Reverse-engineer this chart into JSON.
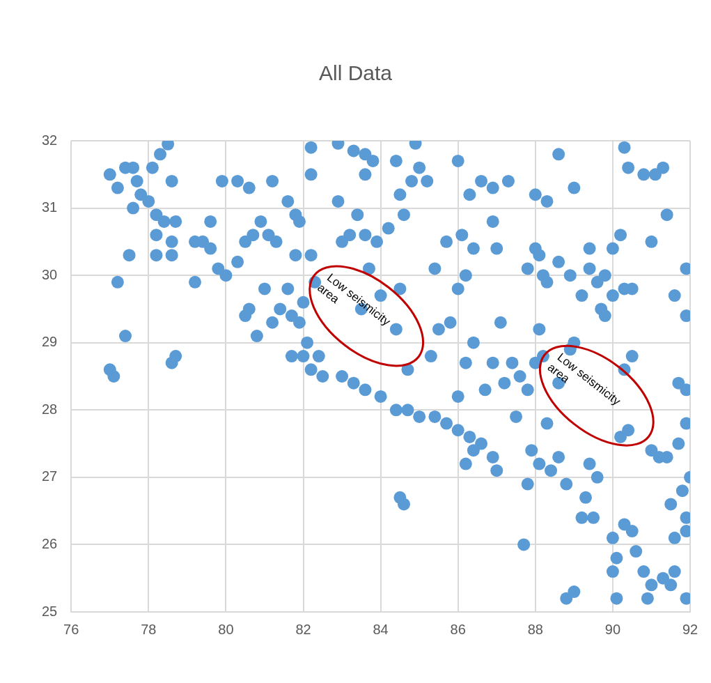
{
  "chart_data": {
    "type": "scatter",
    "title": "All Data",
    "xlim": [
      76,
      92
    ],
    "xticks": [
      76,
      78,
      80,
      82,
      84,
      86,
      88,
      90,
      92
    ],
    "ylim": [
      25,
      32
    ],
    "yticks": [
      25,
      26,
      27,
      28,
      29,
      30,
      31,
      32
    ],
    "grid": true,
    "legend": false,
    "marker": "circle",
    "annotations": [
      "Low seismicity area",
      "Low seismicity area"
    ],
    "series": [
      {
        "color": "#5b9bd5",
        "x": [
          77.0,
          77.2,
          77.4,
          77.6,
          77.7,
          77.8,
          77.6,
          78.0,
          78.2,
          78.4,
          78.2,
          78.6,
          78.7,
          78.1,
          78.3,
          78.5,
          78.6,
          77.5,
          77.2,
          77.4,
          77.0,
          77.1,
          78.6,
          78.7,
          78.6,
          78.2,
          79.2,
          79.2,
          79.4,
          79.6,
          79.6,
          79.8,
          80.0,
          80.3,
          79.9,
          80.3,
          80.6,
          80.7,
          80.5,
          80.9,
          81.1,
          81.3,
          81.0,
          80.6,
          80.5,
          80.8,
          81.2,
          81.4,
          81.7,
          81.9,
          81.6,
          81.8,
          81.9,
          81.2,
          81.6,
          81.8,
          82.1,
          82.0,
          82.2,
          82.4,
          82.5,
          82.3,
          82.2,
          82.0,
          81.7,
          82.2,
          82.2,
          82.9,
          83.3,
          83.6,
          83.8,
          84.4,
          83.6,
          82.9,
          83.4,
          83.2,
          83.6,
          83.9,
          83.0,
          84.2,
          84.6,
          84.5,
          84.8,
          85.0,
          85.2,
          84.9,
          83.7,
          84.0,
          84.5,
          83.0,
          83.3,
          83.6,
          84.0,
          84.4,
          84.7,
          85.0,
          85.4,
          85.7,
          86.0,
          86.3,
          86.6,
          86.4,
          86.9,
          87.0,
          86.2,
          84.5,
          84.6,
          83.5,
          84.4,
          84.7,
          85.3,
          85.5,
          85.8,
          85.4,
          85.7,
          86.0,
          86.2,
          86.1,
          86.3,
          86.6,
          86.9,
          86.9,
          87.3,
          86.0,
          86.4,
          87.0,
          86.4,
          86.2,
          86.0,
          86.7,
          86.9,
          87.1,
          87.4,
          87.6,
          87.2,
          87.5,
          87.8,
          88.0,
          88.2,
          88.1,
          87.8,
          88.0,
          88.2,
          88.3,
          88.1,
          88.0,
          88.3,
          88.6,
          88.6,
          88.9,
          89.2,
          89.4,
          89.6,
          89.8,
          89.4,
          89.7,
          90.0,
          90.3,
          90.5,
          90.0,
          90.2,
          89.0,
          90.3,
          90.4,
          90.8,
          91.1,
          91.3,
          91.0,
          91.4,
          91.6,
          91.9,
          91.9,
          90.5,
          90.3,
          90.2,
          90.4,
          89.0,
          88.6,
          88.3,
          87.9,
          88.1,
          88.4,
          88.8,
          87.8,
          88.6,
          87.7,
          89.4,
          89.6,
          89.3,
          89.5,
          89.2,
          90.0,
          90.1,
          90.0,
          90.3,
          90.5,
          90.6,
          90.8,
          91.0,
          91.3,
          91.5,
          89.0,
          88.8,
          90.1,
          90.9,
          91.6,
          91.9,
          91.0,
          91.2,
          91.4,
          91.7,
          91.9,
          91.9,
          91.7,
          91.8,
          91.9,
          91.6,
          91.9,
          91.5,
          92.0,
          88.9,
          89.8
        ],
        "values": [
          31.5,
          31.3,
          31.6,
          31.6,
          31.4,
          31.2,
          31.0,
          31.1,
          30.9,
          30.8,
          30.6,
          30.5,
          30.8,
          31.6,
          31.8,
          31.95,
          31.4,
          30.3,
          29.9,
          29.1,
          28.6,
          28.5,
          28.7,
          28.8,
          30.3,
          30.3,
          29.9,
          30.5,
          30.5,
          30.4,
          30.8,
          30.1,
          30.0,
          30.2,
          31.4,
          31.4,
          31.3,
          30.6,
          30.5,
          30.8,
          30.6,
          30.5,
          29.8,
          29.5,
          29.4,
          29.1,
          29.3,
          29.5,
          29.4,
          29.3,
          29.8,
          30.3,
          30.8,
          31.4,
          31.1,
          30.9,
          29.0,
          28.8,
          28.6,
          28.8,
          28.5,
          29.9,
          30.3,
          29.6,
          28.8,
          31.5,
          31.9,
          31.96,
          31.85,
          31.8,
          31.7,
          31.7,
          31.5,
          31.1,
          30.9,
          30.6,
          30.6,
          30.5,
          30.5,
          30.7,
          30.9,
          31.2,
          31.4,
          31.6,
          31.4,
          31.96,
          30.1,
          29.7,
          29.8,
          28.5,
          28.4,
          28.3,
          28.2,
          28.0,
          28.0,
          27.9,
          27.9,
          27.8,
          27.7,
          27.6,
          27.5,
          27.4,
          27.3,
          27.1,
          27.2,
          26.7,
          26.6,
          29.5,
          29.2,
          28.6,
          28.8,
          29.2,
          29.3,
          30.1,
          30.5,
          29.8,
          30.0,
          30.6,
          31.2,
          31.4,
          31.3,
          30.8,
          31.4,
          31.7,
          30.4,
          30.4,
          29.0,
          28.7,
          28.2,
          28.3,
          28.7,
          29.3,
          28.7,
          28.5,
          28.4,
          27.9,
          28.3,
          28.7,
          28.8,
          29.2,
          30.1,
          30.4,
          30.0,
          29.9,
          30.3,
          31.2,
          31.1,
          31.8,
          30.2,
          30.0,
          29.7,
          30.1,
          29.9,
          30.0,
          30.4,
          29.5,
          29.7,
          29.8,
          29.8,
          30.4,
          30.6,
          31.3,
          31.9,
          31.6,
          31.5,
          31.5,
          31.6,
          30.5,
          30.9,
          29.7,
          30.1,
          29.4,
          28.8,
          28.6,
          27.6,
          27.7,
          29.0,
          28.4,
          27.8,
          27.4,
          27.2,
          27.1,
          26.9,
          26.9,
          27.3,
          26.0,
          27.2,
          27.0,
          26.7,
          26.4,
          26.4,
          26.1,
          25.8,
          25.6,
          26.3,
          26.2,
          25.9,
          25.6,
          25.4,
          25.5,
          25.4,
          25.3,
          25.2,
          25.2,
          25.2,
          25.6,
          25.2,
          27.4,
          27.3,
          27.3,
          28.4,
          28.3,
          27.8,
          27.5,
          26.8,
          26.4,
          26.1,
          26.2,
          26.6,
          27.0,
          28.9,
          29.4
        ]
      }
    ]
  }
}
